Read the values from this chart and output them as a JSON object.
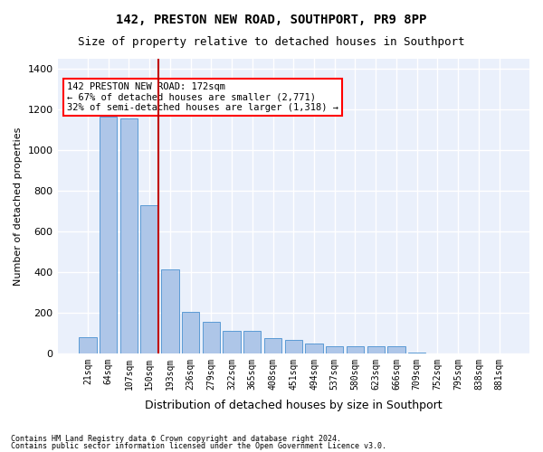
{
  "title1": "142, PRESTON NEW ROAD, SOUTHPORT, PR9 8PP",
  "title2": "Size of property relative to detached houses in Southport",
  "xlabel": "Distribution of detached houses by size in Southport",
  "ylabel": "Number of detached properties",
  "footnote1": "Contains HM Land Registry data © Crown copyright and database right 2024.",
  "footnote2": "Contains public sector information licensed under the Open Government Licence v3.0.",
  "annotation_line1": "142 PRESTON NEW ROAD: 172sqm",
  "annotation_line2": "← 67% of detached houses are smaller (2,771)",
  "annotation_line3": "32% of semi-detached houses are larger (1,318) →",
  "property_size": 172,
  "categories": [
    "21sqm",
    "64sqm",
    "107sqm",
    "150sqm",
    "193sqm",
    "236sqm",
    "279sqm",
    "322sqm",
    "365sqm",
    "408sqm",
    "451sqm",
    "494sqm",
    "537sqm",
    "580sqm",
    "623sqm",
    "666sqm",
    "709sqm",
    "752sqm",
    "795sqm",
    "838sqm",
    "881sqm"
  ],
  "values": [
    80,
    1165,
    1155,
    730,
    415,
    205,
    155,
    110,
    110,
    75,
    65,
    50,
    35,
    35,
    35,
    35,
    5,
    0,
    0,
    0,
    0
  ],
  "bar_color": "#aec6e8",
  "bar_edge_color": "#5b9bd5",
  "highlight_color": "#c00000",
  "background_color": "#eaf0fb",
  "grid_color": "#ffffff",
  "ylim": [
    0,
    1450
  ],
  "yticks": [
    0,
    200,
    400,
    600,
    800,
    1000,
    1200,
    1400
  ],
  "property_bin_index": 3
}
